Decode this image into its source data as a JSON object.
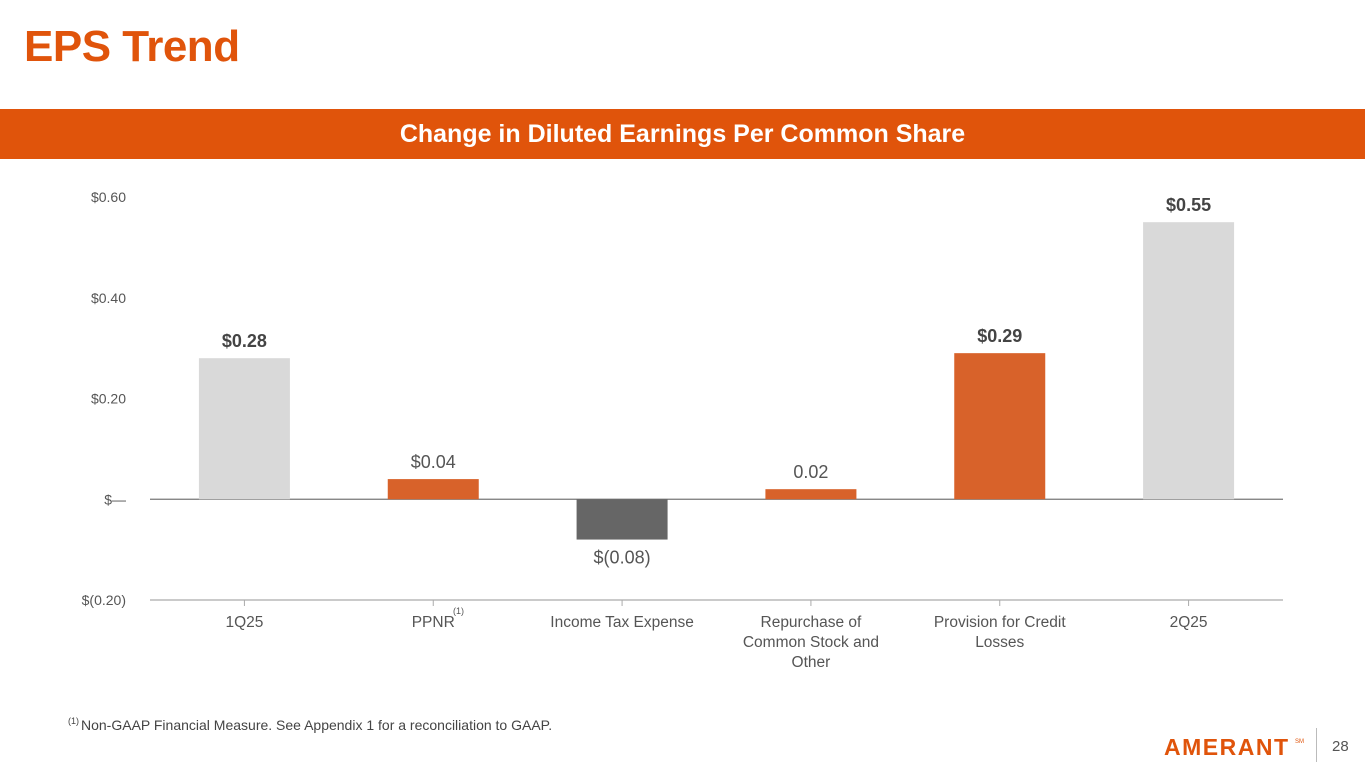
{
  "title": "EPS Trend",
  "banner": "Change in Diluted Earnings Per Common Share",
  "colors": {
    "accent": "#e0540b",
    "start_end": "#d9d9d9",
    "increase": "#d8622a",
    "decrease": "#666666",
    "axis": "#888888",
    "label_text": "#555555"
  },
  "chart_data": {
    "type": "bar",
    "subtype": "waterfall",
    "title": "Change in Diluted Earnings Per Common Share",
    "ylim": [
      -0.2,
      0.6
    ],
    "yticks": [
      0.6,
      0.4,
      0.2,
      0.0,
      -0.2
    ],
    "ytick_labels": [
      "$0.60",
      "$0.40",
      "$0.20",
      "$—",
      "$(0.20)"
    ],
    "categories": [
      "1Q25",
      "PPNR",
      "Income Tax Expense",
      "Repurchase of Common Stock and Other",
      "Provision for Credit Losses",
      "2Q25"
    ],
    "category_lines": [
      [
        "1Q25"
      ],
      [
        "PPNR"
      ],
      [
        "Income Tax Expense"
      ],
      [
        "Repurchase of",
        "Common Stock and",
        "Other"
      ],
      [
        "Provision for Credit",
        "Losses"
      ],
      [
        "2Q25"
      ]
    ],
    "category_superscripts": [
      "",
      "(1)",
      "",
      "",
      "",
      ""
    ],
    "values": [
      0.28,
      0.04,
      -0.08,
      0.02,
      0.29,
      0.55
    ],
    "bar_roles": [
      "total",
      "increase",
      "decrease",
      "increase",
      "increase",
      "total"
    ],
    "data_labels": [
      "$0.28",
      "$0.04",
      "$(0.08)",
      "0.02",
      "$0.29",
      "$0.55"
    ],
    "data_label_bold": [
      true,
      false,
      false,
      false,
      true,
      true
    ]
  },
  "footnote": {
    "marker": "(1)",
    "text": "Non-GAAP Financial Measure. See Appendix 1 for a reconciliation to GAAP."
  },
  "logo": {
    "text": "AMERANT",
    "mark": "SM"
  },
  "page_number": "28"
}
